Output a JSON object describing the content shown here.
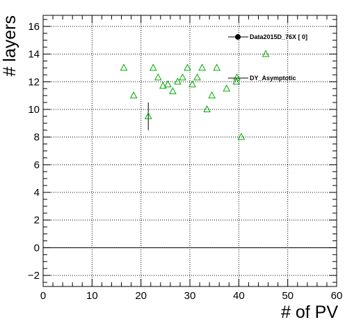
{
  "chart_data": {
    "type": "scatter",
    "title": "",
    "xlabel": "# of PV",
    "ylabel": "# layers",
    "xlim": [
      0,
      60
    ],
    "ylim": [
      -2.8,
      16.8
    ],
    "grid": true,
    "xticks": [
      0,
      10,
      20,
      30,
      40,
      50,
      60
    ],
    "xtick_labels": [
      "0",
      "10",
      "20",
      "30",
      "40",
      "50",
      "60"
    ],
    "yticks": [
      -2,
      0,
      2,
      4,
      6,
      8,
      10,
      12,
      14,
      16
    ],
    "ytick_labels": [
      "−2",
      "0",
      "2",
      "4",
      "6",
      "8",
      "10",
      "12",
      "14",
      "16"
    ],
    "legend_position": "top-right",
    "series": [
      {
        "name": "Data2015D_76X [       0]",
        "marker": "filled-circle",
        "color": "#000000",
        "points": []
      },
      {
        "name": "DY_Asymptotic",
        "marker": "open-triangle",
        "color": "#00aa00",
        "points": [
          {
            "x": 16.5,
            "y": 13.0
          },
          {
            "x": 18.5,
            "y": 11.0
          },
          {
            "x": 21.5,
            "y": 9.5,
            "yerr": 1.0
          },
          {
            "x": 22.5,
            "y": 13.0
          },
          {
            "x": 23.5,
            "y": 12.3
          },
          {
            "x": 24.5,
            "y": 11.7
          },
          {
            "x": 25.5,
            "y": 11.8
          },
          {
            "x": 26.5,
            "y": 11.3
          },
          {
            "x": 27.5,
            "y": 12.0
          },
          {
            "x": 28.5,
            "y": 12.3
          },
          {
            "x": 29.5,
            "y": 13.0
          },
          {
            "x": 30.5,
            "y": 11.8
          },
          {
            "x": 31.5,
            "y": 12.3
          },
          {
            "x": 32.5,
            "y": 13.0
          },
          {
            "x": 33.5,
            "y": 10.0
          },
          {
            "x": 34.5,
            "y": 11.0
          },
          {
            "x": 35.5,
            "y": 13.0
          },
          {
            "x": 37.5,
            "y": 11.5
          },
          {
            "x": 39.5,
            "y": 12.0
          },
          {
            "x": 39.6,
            "y": 12.3
          },
          {
            "x": 40.5,
            "y": 8.0
          },
          {
            "x": 45.5,
            "y": 14.0
          }
        ]
      }
    ]
  }
}
